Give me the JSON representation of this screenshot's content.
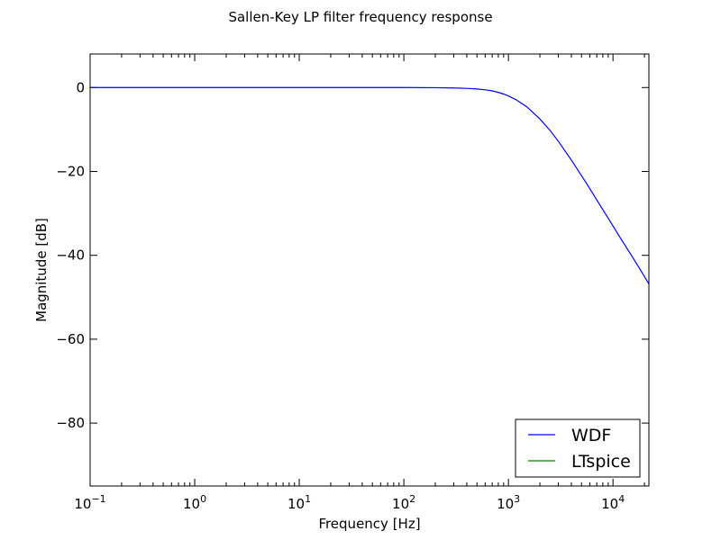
{
  "chart_data": {
    "type": "line",
    "title": "Sallen-Key LP filter frequency response",
    "xlabel": "Frequency [Hz]",
    "ylabel": "Magnitude [dB]",
    "x_scale": "log",
    "xlim": [
      0.1,
      22050
    ],
    "ylim": [
      -95,
      8
    ],
    "grid": false,
    "legend_position": "lower-right",
    "x_ticks": [
      {
        "value": 0.1,
        "base": "10",
        "exp": "−1"
      },
      {
        "value": 1,
        "base": "10",
        "exp": "0"
      },
      {
        "value": 10,
        "base": "10",
        "exp": "1"
      },
      {
        "value": 100,
        "base": "10",
        "exp": "2"
      },
      {
        "value": 1000,
        "base": "10",
        "exp": "3"
      },
      {
        "value": 10000,
        "base": "10",
        "exp": "4"
      }
    ],
    "y_ticks": [
      {
        "value": 0,
        "label": "0"
      },
      {
        "value": -20,
        "label": "−20"
      },
      {
        "value": -40,
        "label": "−40"
      },
      {
        "value": -60,
        "label": "−60"
      },
      {
        "value": -80,
        "label": "−80"
      }
    ],
    "series": [
      {
        "name": "WDF",
        "color": "#0000ff",
        "x": [
          0.1,
          1,
          10,
          100,
          200,
          300,
          400,
          500,
          600,
          700,
          800,
          900,
          1000,
          1200,
          1500,
          2000,
          2500,
          3000,
          4000,
          5000,
          6000,
          7000,
          8000,
          10000,
          12000,
          15000,
          18000,
          22050
        ],
        "y": [
          0,
          0,
          0,
          0,
          -0.03,
          -0.1,
          -0.2,
          -0.35,
          -0.55,
          -0.8,
          -1.15,
          -1.55,
          -2.0,
          -3.0,
          -4.6,
          -7.5,
          -10.2,
          -12.8,
          -17.3,
          -21.0,
          -24.1,
          -26.8,
          -29.1,
          -33.0,
          -36.2,
          -40.0,
          -43.2,
          -46.8
        ]
      },
      {
        "name": "LTspice",
        "color": "#008000",
        "x": [],
        "y": []
      }
    ]
  }
}
